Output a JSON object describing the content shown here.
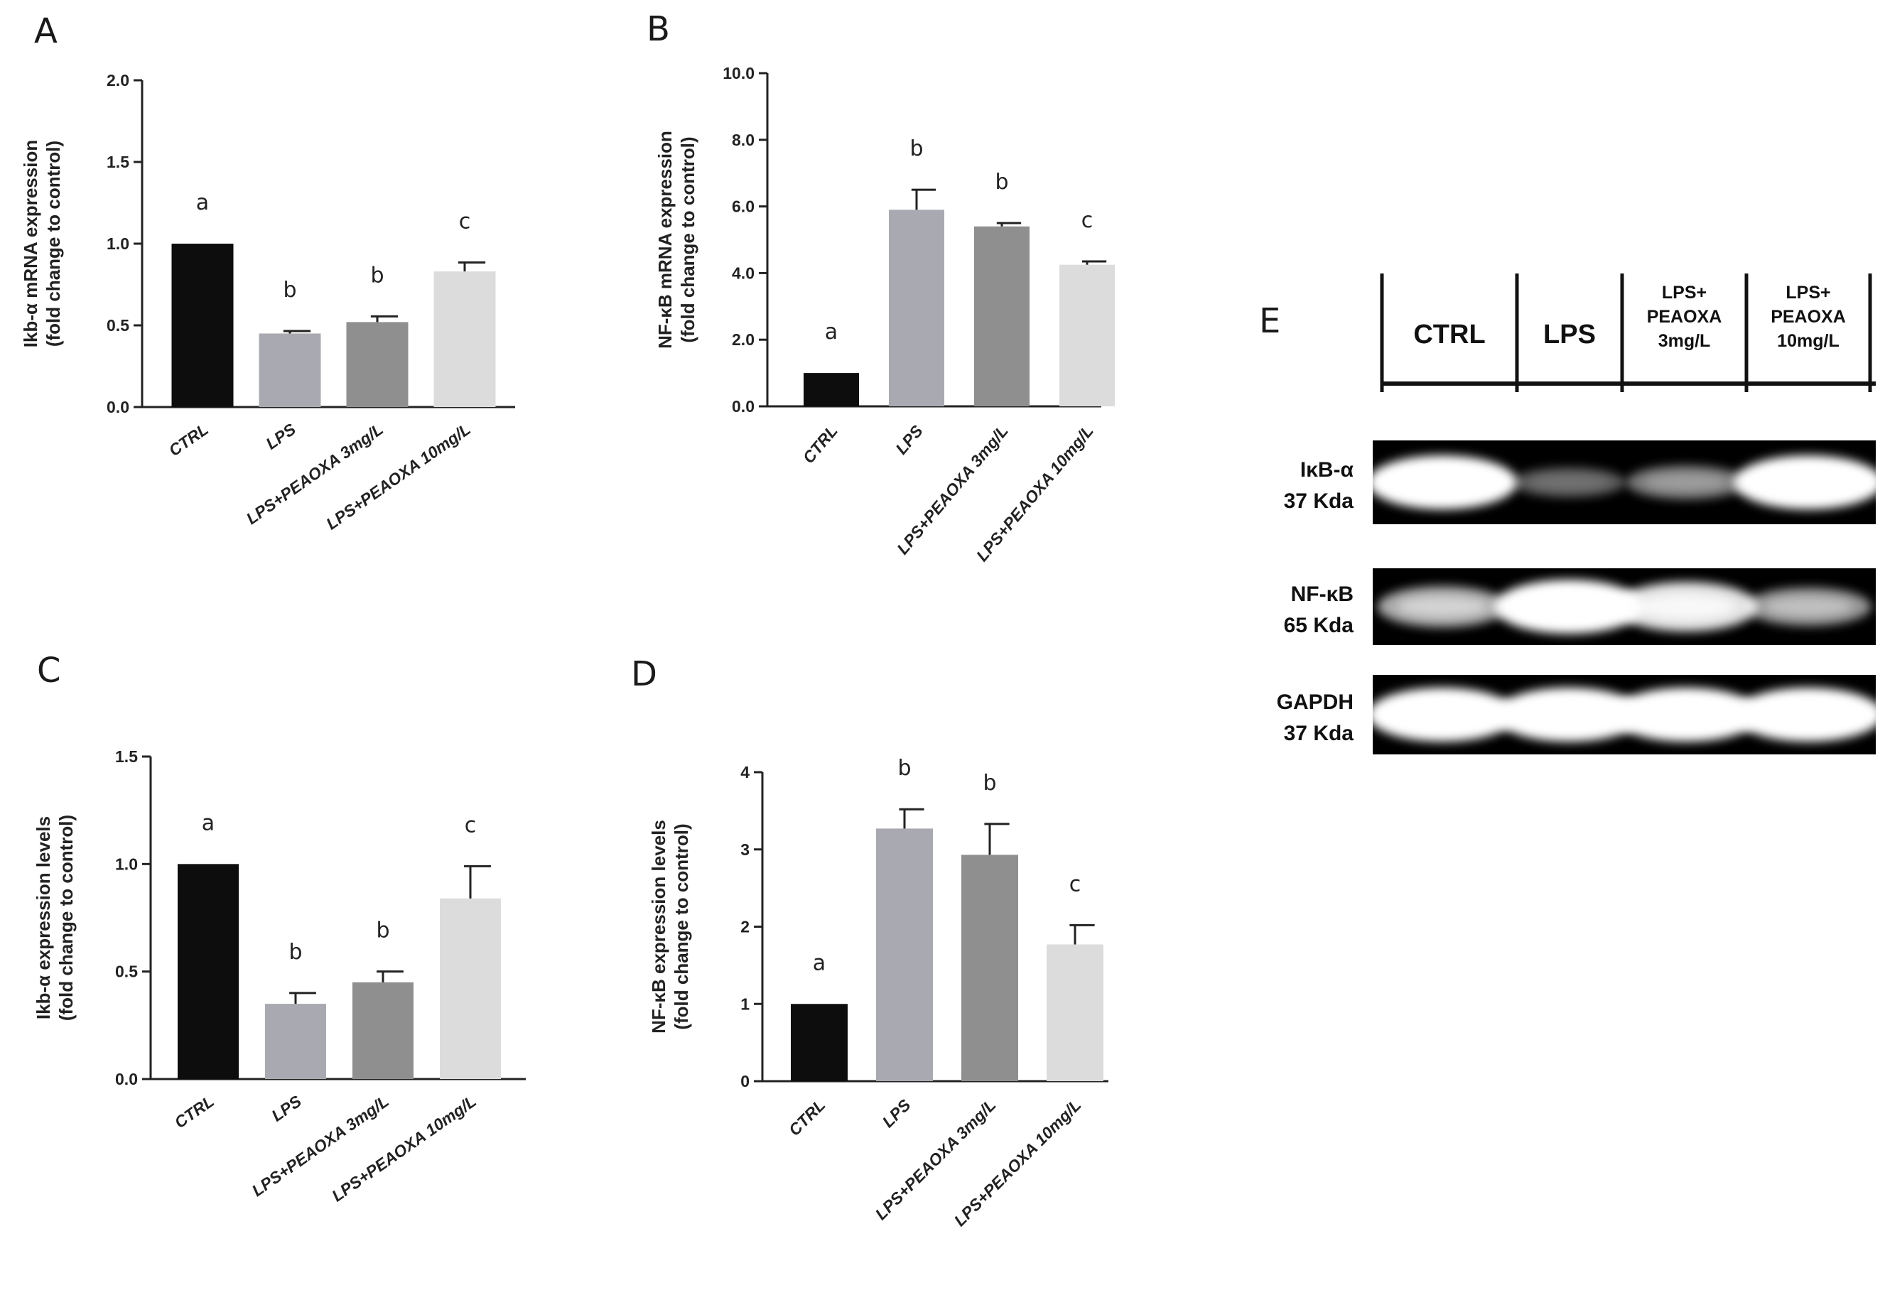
{
  "chart_data": [
    {
      "panel": "A",
      "type": "bar",
      "categories": [
        "CTRL",
        "LPS",
        "LPS+PEAOXA 3mg/L",
        "LPS+PEAOXA 10mg/L"
      ],
      "values": [
        1.0,
        0.45,
        0.52,
        0.83
      ],
      "errors": [
        0,
        0.015,
        0.035,
        0.055
      ],
      "significance": [
        "a",
        "b",
        "b",
        "c"
      ],
      "ylabel_lines": [
        "Ikb-α mRNA expression",
        "(fold change to control)"
      ],
      "ylim": [
        0,
        2.0
      ],
      "yticks": [
        "0.0",
        "0.5",
        "1.0",
        "1.5",
        "2.0"
      ],
      "colors": [
        "#0d0d0d",
        "#a9a9b1",
        "#8f8f8f",
        "#dcdcdc"
      ]
    },
    {
      "panel": "B",
      "type": "bar",
      "categories": [
        "CTRL",
        "LPS",
        "LPS+PEAOXA 3mg/L",
        "LPS+PEAOXA 10mg/L"
      ],
      "values": [
        1.0,
        5.9,
        5.4,
        4.25
      ],
      "errors": [
        0,
        0.6,
        0.1,
        0.1
      ],
      "significance": [
        "a",
        "b",
        "b",
        "c"
      ],
      "ylabel_lines": [
        "NF-κB mRNA expression",
        "(fold change to control)"
      ],
      "ylim": [
        0,
        10.0
      ],
      "yticks": [
        "0.0",
        "2.0",
        "4.0",
        "6.0",
        "8.0",
        "10.0"
      ],
      "colors": [
        "#0d0d0d",
        "#a9a9b1",
        "#8f8f8f",
        "#dcdcdc"
      ]
    },
    {
      "panel": "C",
      "type": "bar",
      "categories": [
        "CTRL",
        "LPS",
        "LPS+PEAOXA 3mg/L",
        "LPS+PEAOXA 10mg/L"
      ],
      "values": [
        1.0,
        0.35,
        0.45,
        0.84
      ],
      "errors": [
        0,
        0.05,
        0.05,
        0.15
      ],
      "significance": [
        "a",
        "b",
        "b",
        "c"
      ],
      "ylabel_lines": [
        "Ikb-α expression levels",
        "(fold change to control)"
      ],
      "ylim": [
        0,
        1.5
      ],
      "yticks": [
        "0.0",
        "0.5",
        "1.0",
        "1.5"
      ],
      "colors": [
        "#0d0d0d",
        "#a9a9b1",
        "#8f8f8f",
        "#dcdcdc"
      ]
    },
    {
      "panel": "D",
      "type": "bar",
      "categories": [
        "CTRL",
        "LPS",
        "LPS+PEAOXA 3mg/L",
        "LPS+PEAOXA 10mg/L"
      ],
      "values": [
        1.0,
        3.27,
        2.93,
        1.77
      ],
      "errors": [
        0,
        0.25,
        0.4,
        0.25
      ],
      "significance": [
        "a",
        "b",
        "b",
        "c"
      ],
      "ylabel_lines": [
        "NF-κB expression levels",
        "(fold change to control)"
      ],
      "ylim": [
        0,
        4
      ],
      "yticks": [
        "0",
        "1",
        "2",
        "3",
        "4"
      ],
      "colors": [
        "#0d0d0d",
        "#a9a9b1",
        "#8f8f8f",
        "#dcdcdc"
      ]
    }
  ],
  "western_blot": {
    "panel": "E",
    "lanes": [
      [
        "CTRL"
      ],
      [
        "LPS"
      ],
      [
        "LPS+",
        "PEAOXA",
        "3mg/L"
      ],
      [
        "LPS+",
        "PEAOXA",
        "10mg/L"
      ]
    ],
    "rows": [
      {
        "name": [
          "IκB-α",
          "37 Kda"
        ],
        "band_intensity": [
          1.0,
          0.15,
          0.3,
          1.0
        ]
      },
      {
        "name": [
          "NF-κB",
          "65 Kda"
        ],
        "band_intensity": [
          0.55,
          1.0,
          0.85,
          0.45
        ]
      },
      {
        "name": [
          "GAPDH",
          "37 Kda"
        ],
        "band_intensity": [
          1.0,
          1.0,
          1.0,
          1.0
        ]
      }
    ]
  }
}
